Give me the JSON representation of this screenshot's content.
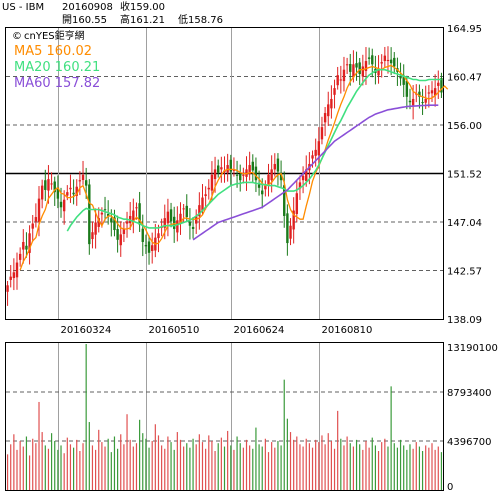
{
  "header": {
    "symbol": "US - IBM",
    "date": "20160908",
    "close_label": "收159.00",
    "open_label": "開160.55",
    "high_label": "高161.21",
    "low_label": "低158.76"
  },
  "brand": {
    "copyright_glyph": "©",
    "name": "cnYES鉅亨網"
  },
  "colors": {
    "up": "#e02020",
    "down": "#1a7a1a",
    "ma5": "#ff8c00",
    "ma20": "#40e080",
    "ma60": "#8a4fd8",
    "grid": "#606060",
    "volume_up": "#e05050",
    "volume_down": "#3a9a3a"
  },
  "chart_data": [
    {
      "type": "candlestick",
      "title": "",
      "y_ticks": [
        "164.95",
        "160.47",
        "156.00",
        "151.52",
        "147.04",
        "142.57",
        "138.09"
      ],
      "ylim": [
        138.09,
        164.95
      ],
      "x_tick_labels": [
        "20160324",
        "20160510",
        "20160624",
        "20160810"
      ],
      "legend": [
        {
          "name": "MA5 160.02",
          "color": "#ff8c00"
        },
        {
          "name": "MA20 160.21",
          "color": "#40e080"
        },
        {
          "name": "MA60 157.82",
          "color": "#8a4fd8"
        }
      ],
      "series": {
        "close": [
          141.2,
          142.0,
          142.4,
          143.3,
          144.1,
          145.2,
          144.5,
          146.0,
          146.9,
          147.5,
          149.2,
          150.4,
          150.0,
          151.0,
          150.6,
          149.8,
          149.2,
          148.4,
          149.1,
          149.8,
          150.2,
          149.6,
          150.3,
          150.9,
          151.4,
          150.4,
          145.0,
          146.1,
          147.0,
          147.4,
          147.9,
          148.2,
          147.6,
          147.0,
          146.3,
          145.4,
          145.9,
          146.4,
          147.1,
          147.6,
          148.1,
          148.4,
          146.8,
          145.2,
          144.8,
          144.2,
          144.9,
          145.6,
          146.0,
          146.6,
          147.4,
          148.0,
          147.1,
          146.4,
          147.2,
          147.8,
          148.3,
          147.5,
          146.7,
          146.4,
          147.6,
          148.6,
          149.3,
          149.6,
          150.2,
          151.4,
          151.9,
          151.6,
          152.1,
          151.8,
          152.3,
          151.7,
          151.9,
          151.4,
          150.9,
          151.4,
          151.9,
          152.3,
          151.8,
          150.9,
          150.2,
          149.6,
          150.4,
          151.4,
          151.9,
          152.4,
          151.7,
          150.9,
          147.6,
          145.1,
          146.7,
          148.1,
          149.7,
          150.7,
          151.3,
          151.9,
          152.4,
          153.2,
          153.7,
          154.5,
          155.8,
          157.1,
          157.9,
          158.4,
          159.4,
          160.6,
          160.2,
          161.1,
          161.6,
          160.9,
          161.6,
          161.3,
          160.7,
          161.4,
          161.9,
          162.1,
          161.6,
          160.8,
          161.2,
          161.8,
          162.4,
          162.0,
          161.7,
          161.4,
          160.9,
          160.3,
          159.7,
          158.6,
          158.1,
          158.4,
          158.9,
          158.6,
          158.1,
          158.4,
          159.0,
          159.2,
          159.4,
          159.9,
          159.0
        ],
        "ma5": [
          null,
          null,
          null,
          null,
          142.6,
          143.4,
          143.9,
          144.6,
          145.3,
          145.6,
          146.8,
          147.6,
          148.2,
          149.2,
          149.6,
          150.0,
          150.2,
          149.7,
          149.6,
          149.3,
          149.3,
          149.4,
          149.6,
          150.2,
          150.4,
          149.6,
          148.8,
          148.6,
          147.9,
          147.2,
          146.7,
          147.3,
          147.6,
          147.6,
          147.3,
          146.9,
          146.5,
          146.4,
          146.4,
          146.5,
          147.1,
          147.5,
          147.2,
          146.8,
          146.3,
          145.7,
          145.2,
          145.0,
          145.1,
          145.5,
          146.1,
          146.7,
          146.8,
          146.9,
          146.8,
          147.0,
          147.4,
          147.4,
          147.3,
          147.3,
          147.3,
          147.4,
          147.7,
          148.3,
          148.7,
          149.4,
          150.3,
          150.9,
          151.4,
          151.8,
          151.9,
          151.9,
          151.9,
          151.8,
          151.6,
          151.5,
          151.5,
          151.6,
          151.6,
          151.3,
          151.0,
          150.6,
          150.4,
          150.5,
          150.7,
          151.1,
          151.4,
          151.5,
          150.7,
          149.1,
          148.2,
          147.7,
          147.5,
          147.3,
          147.3,
          148.5,
          149.6,
          150.8,
          151.6,
          152.2,
          152.9,
          153.7,
          154.6,
          155.4,
          156.2,
          157.1,
          157.9,
          158.6,
          159.4,
          160.0,
          160.4,
          160.8,
          161.1,
          161.1,
          161.2,
          161.3,
          161.4,
          161.3,
          161.2,
          161.1,
          161.3,
          161.4,
          161.5,
          161.3,
          161.1,
          160.8,
          160.5,
          160.1,
          159.7,
          159.1,
          158.9,
          158.7,
          158.6,
          158.5,
          158.4,
          158.5,
          158.7,
          159.0,
          159.3,
          159.6,
          159.3
        ],
        "ma20": [
          null,
          null,
          null,
          null,
          null,
          null,
          null,
          null,
          null,
          null,
          null,
          null,
          null,
          null,
          null,
          null,
          null,
          null,
          null,
          146.2,
          146.7,
          147.1,
          147.5,
          147.8,
          148.1,
          148.3,
          148.2,
          148.2,
          148.2,
          148.2,
          148.1,
          148.0,
          147.9,
          147.8,
          147.7,
          147.5,
          147.4,
          147.3,
          147.3,
          147.2,
          147.1,
          147.0,
          146.9,
          146.7,
          146.6,
          146.5,
          146.5,
          146.5,
          146.5,
          146.6,
          146.7,
          146.7,
          146.7,
          146.7,
          146.8,
          146.9,
          147.0,
          147.1,
          147.2,
          147.4,
          147.6,
          147.8,
          148.1,
          148.4,
          148.7,
          149.0,
          149.3,
          149.6,
          149.8,
          150.0,
          150.2,
          150.4,
          150.5,
          150.6,
          150.6,
          150.7,
          150.7,
          150.7,
          150.7,
          150.6,
          150.6,
          150.5,
          150.5,
          150.4,
          150.4,
          150.4,
          150.3,
          150.2,
          150.1,
          149.9,
          149.9,
          149.9,
          150.0,
          150.2,
          150.4,
          150.7,
          151.0,
          151.4,
          151.8,
          152.3,
          152.9,
          153.5,
          154.1,
          154.7,
          155.3,
          155.9,
          156.4,
          157.0,
          157.6,
          158.1,
          158.6,
          159.1,
          159.5,
          159.9,
          160.3,
          160.6,
          160.8,
          161.0,
          161.1,
          161.1,
          161.1,
          161.0,
          160.9,
          160.8,
          160.7,
          160.6,
          160.5,
          160.4,
          160.3,
          160.2,
          160.2,
          160.1,
          160.1,
          160.1,
          160.2,
          160.2,
          160.2,
          160.2,
          160.2
        ],
        "ma60": [
          null,
          null,
          null,
          null,
          null,
          null,
          null,
          null,
          null,
          null,
          null,
          null,
          null,
          null,
          null,
          null,
          null,
          null,
          null,
          null,
          null,
          null,
          null,
          null,
          null,
          null,
          null,
          null,
          null,
          null,
          null,
          null,
          null,
          null,
          null,
          null,
          null,
          null,
          null,
          null,
          null,
          null,
          null,
          null,
          null,
          null,
          null,
          null,
          null,
          null,
          null,
          null,
          null,
          null,
          null,
          null,
          null,
          null,
          null,
          145.4,
          145.6,
          145.8,
          146.0,
          146.2,
          146.4,
          146.6,
          146.8,
          147.0,
          147.1,
          147.2,
          147.3,
          147.4,
          147.5,
          147.6,
          147.7,
          147.8,
          147.9,
          148.0,
          148.1,
          148.2,
          148.3,
          148.4,
          148.6,
          148.8,
          149.0,
          149.2,
          149.4,
          149.6,
          149.8,
          150.0,
          150.3,
          150.6,
          150.9,
          151.2,
          151.5,
          151.8,
          152.1,
          152.4,
          152.7,
          153.0,
          153.3,
          153.6,
          153.9,
          154.2,
          154.5,
          154.7,
          154.9,
          155.1,
          155.3,
          155.5,
          155.7,
          155.9,
          156.1,
          156.3,
          156.5,
          156.7,
          156.85,
          157.0,
          157.1,
          157.2,
          157.3,
          157.4,
          157.45,
          157.5,
          157.55,
          157.6,
          157.65,
          157.7,
          157.72,
          157.74,
          157.76,
          157.78,
          157.8,
          157.81,
          157.82,
          157.82,
          157.82,
          157.82
        ]
      }
    },
    {
      "type": "bar",
      "title": "",
      "y_ticks": [
        "13190100",
        "8793400",
        "4396700",
        "0"
      ],
      "ylim": [
        0,
        13190100
      ],
      "values": [
        3.2,
        4.1,
        5.0,
        3.6,
        4.4,
        3.9,
        4.8,
        3.1,
        4.6,
        4.2,
        7.9,
        5.2,
        4.0,
        3.7,
        5.1,
        4.4,
        3.6,
        4.0,
        3.3,
        4.7,
        4.1,
        3.8,
        4.5,
        3.5,
        4.2,
        13.1,
        6.1,
        4.0,
        3.6,
        5.4,
        4.3,
        3.9,
        4.6,
        3.4,
        4.8,
        3.7,
        5.0,
        4.1,
        6.8,
        4.5,
        3.9,
        4.2,
        6.3,
        5.1,
        4.6,
        3.8,
        4.4,
        5.9,
        4.9,
        4.0,
        3.7,
        4.8,
        4.3,
        3.6,
        5.2,
        4.5,
        3.9,
        4.2,
        3.8,
        4.6,
        4.1,
        5.0,
        4.3,
        3.7,
        4.9,
        4.4,
        3.5,
        4.2,
        4.7,
        3.9,
        5.3,
        4.0,
        3.6,
        4.8,
        4.2,
        3.8,
        4.5,
        4.0,
        3.7,
        5.6,
        4.1,
        3.9,
        4.6,
        3.4,
        4.3,
        3.8,
        4.4,
        4.0,
        9.9,
        6.4,
        5.2,
        4.5,
        4.8,
        4.1,
        3.9,
        4.6,
        4.2,
        3.8,
        4.5,
        4.3,
        4.9,
        4.1,
        5.1,
        4.4,
        3.7,
        7.1,
        4.6,
        4.0,
        4.8,
        4.2,
        3.9,
        4.5,
        4.1,
        3.6,
        4.4,
        3.8,
        4.7,
        4.0,
        3.5,
        4.3,
        4.6,
        3.9,
        9.3,
        4.2,
        3.8,
        4.5,
        4.0,
        3.6,
        4.1,
        3.7,
        4.3,
        3.9,
        3.5,
        4.0,
        3.8,
        4.2,
        3.6,
        3.9,
        3.4
      ]
    }
  ]
}
